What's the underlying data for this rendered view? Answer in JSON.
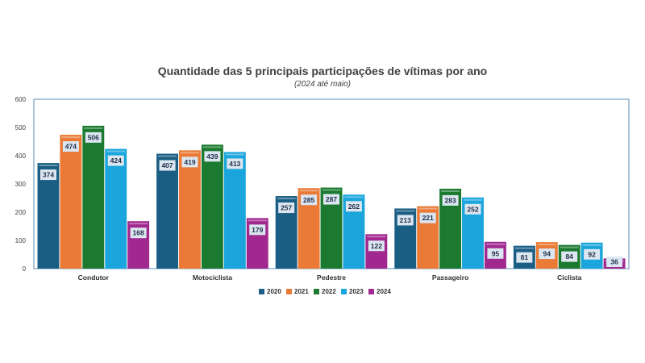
{
  "chart_data": {
    "type": "bar",
    "title": "Quantidade das 5 principais participações de vítimas por ano",
    "subtitle": "(2024 até maio)",
    "categories": [
      "Condutor",
      "Motociclista",
      "Pedestre",
      "Passageiro",
      "Ciclista"
    ],
    "series": [
      {
        "name": "2020",
        "color": "#1b5e84",
        "values": [
          374,
          407,
          257,
          213,
          81
        ]
      },
      {
        "name": "2021",
        "color": "#ea7a35",
        "values": [
          474,
          419,
          285,
          221,
          94
        ]
      },
      {
        "name": "2022",
        "color": "#1b7a2f",
        "values": [
          506,
          439,
          287,
          283,
          84
        ]
      },
      {
        "name": "2023",
        "color": "#1aa5dc",
        "values": [
          424,
          413,
          262,
          252,
          92
        ]
      },
      {
        "name": "2024",
        "color": "#a1288f",
        "values": [
          168,
          179,
          122,
          95,
          36
        ]
      }
    ],
    "yticks": [
      0,
      100,
      200,
      300,
      400,
      500,
      600
    ],
    "ylim": [
      0,
      600
    ],
    "legend_position": "bottom",
    "grid": false
  }
}
